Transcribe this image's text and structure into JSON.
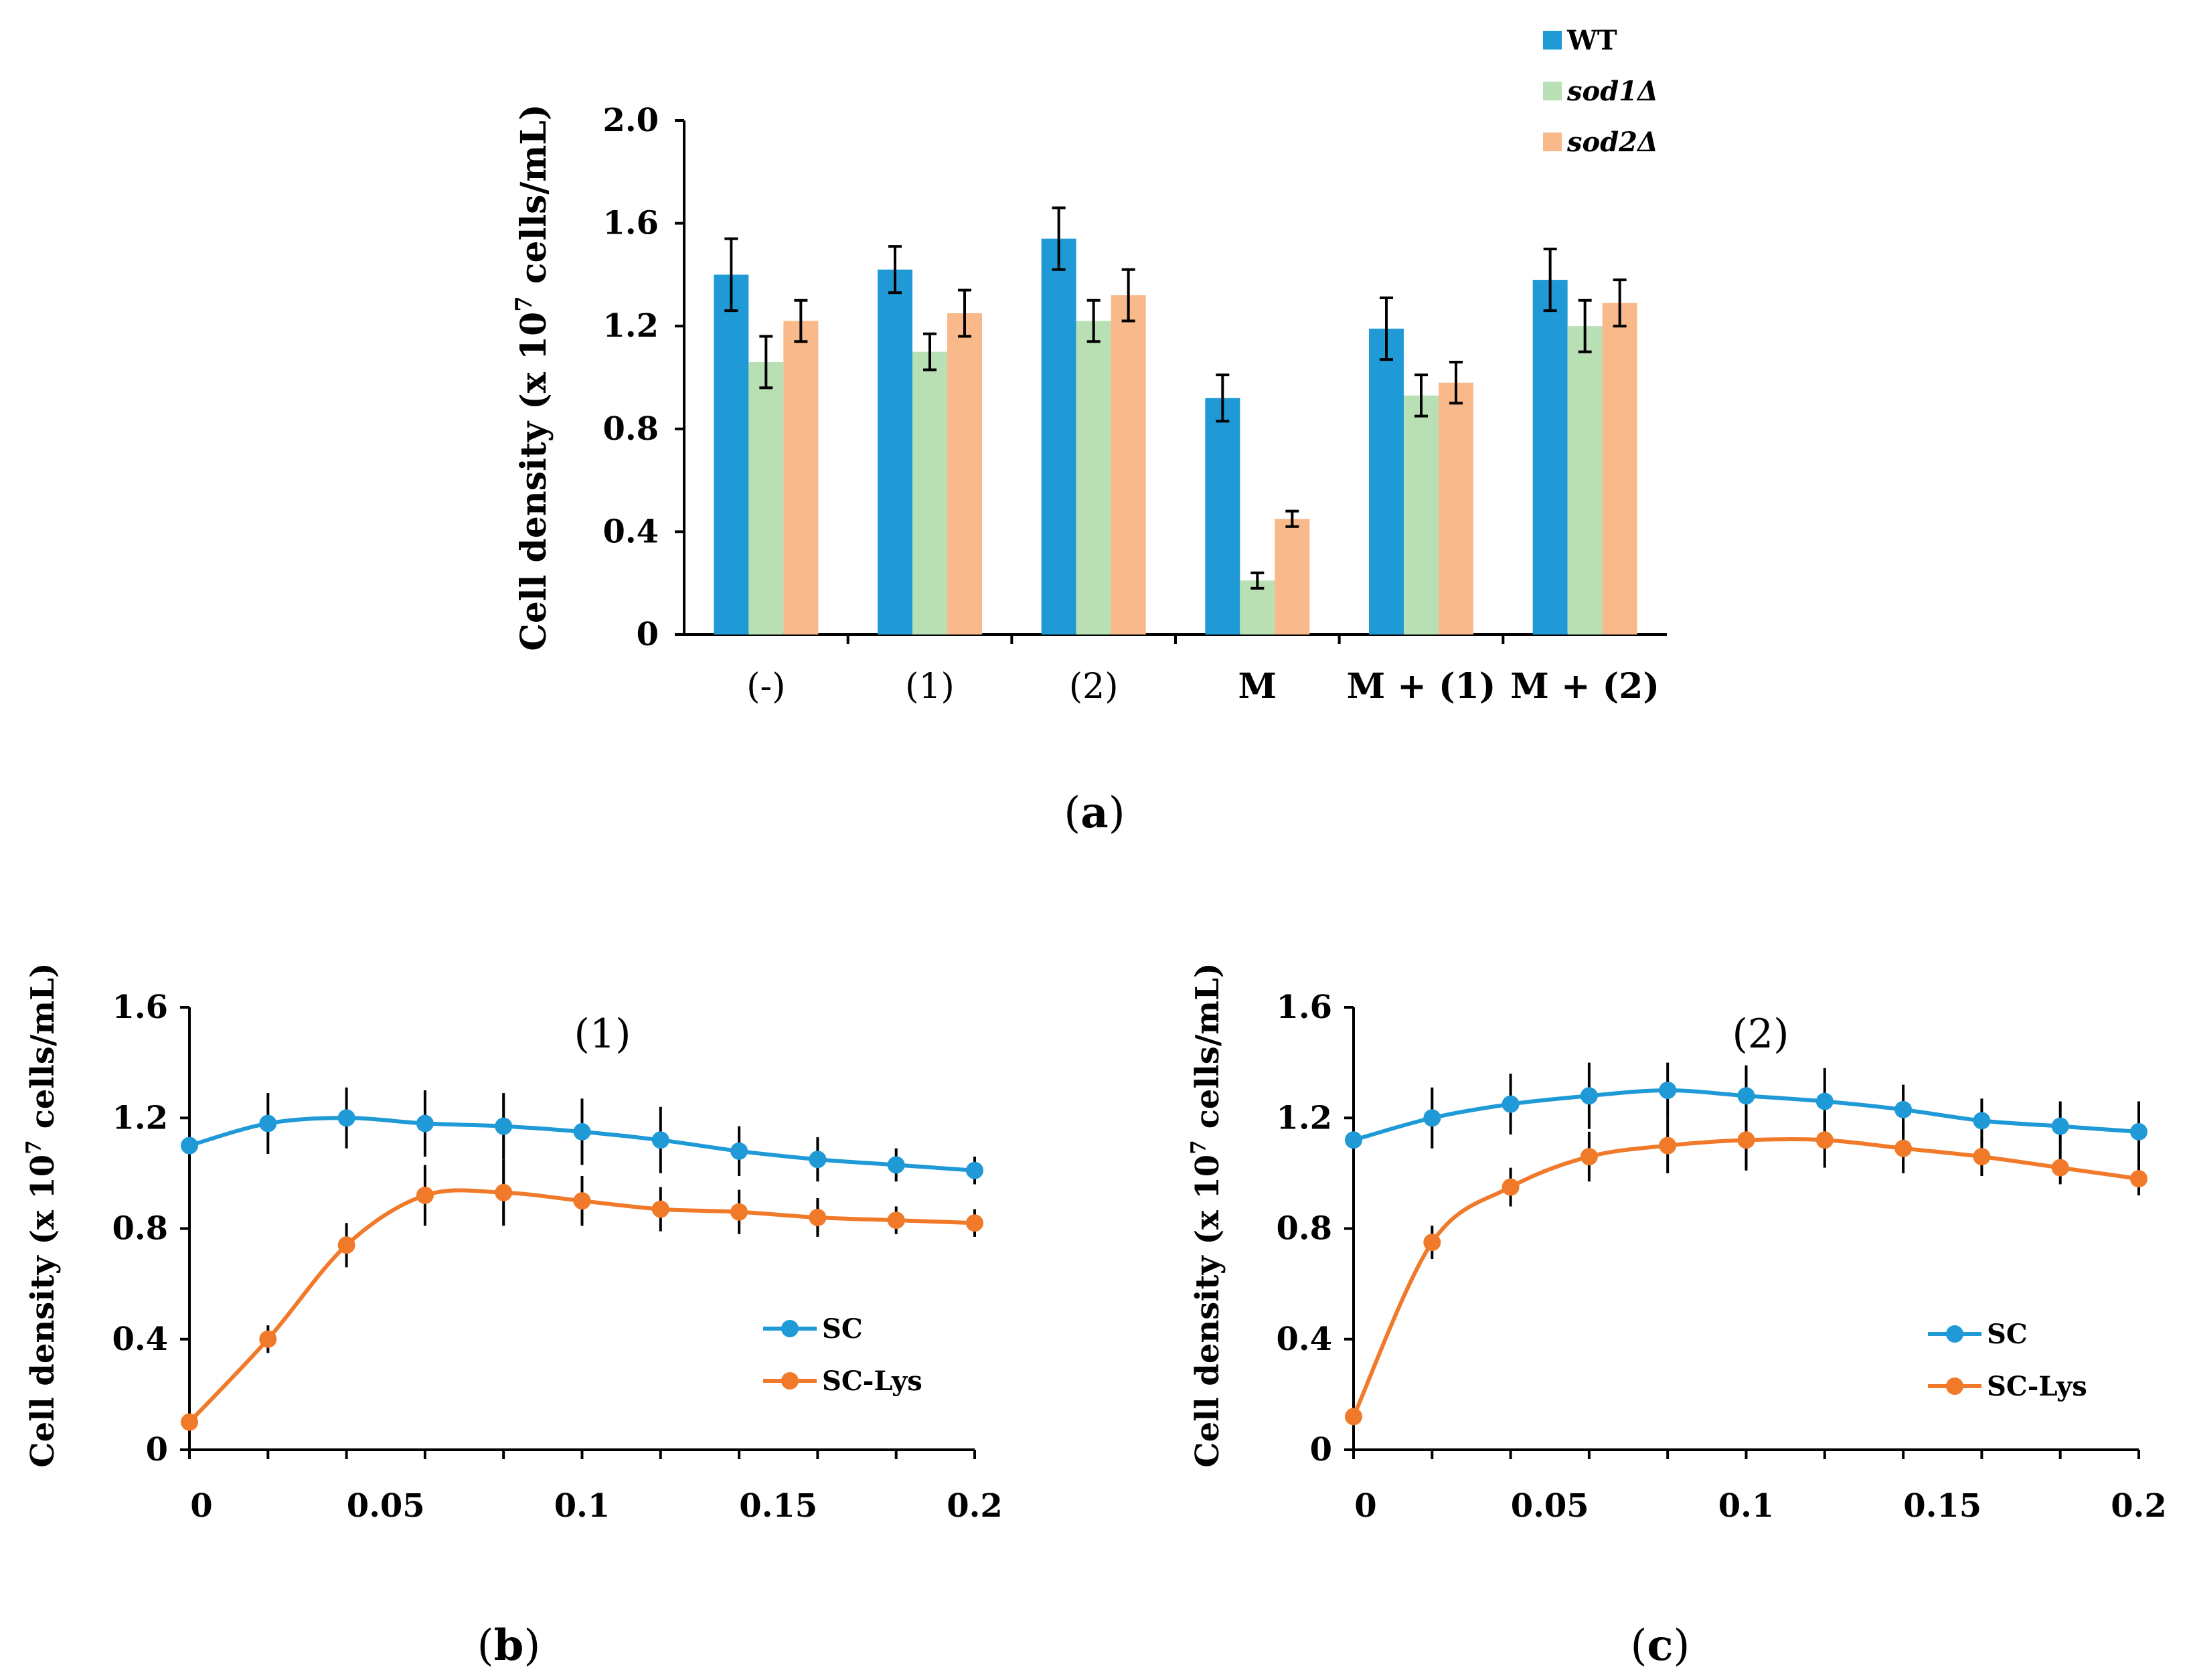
{
  "chart_data": [
    {
      "type": "bar",
      "panel_label": "(a)",
      "title": "",
      "xlabel": "",
      "ylabel": "Cell density (x 10⁷ cells/mL)",
      "ylim": [
        0,
        2.0
      ],
      "yticks": [
        "0",
        "0.4",
        "0.8",
        "1.2",
        "1.6",
        "2.0"
      ],
      "categories": [
        "(-)",
        "(1)",
        "(2)",
        "M",
        "M + (1)",
        "M + (2)"
      ],
      "legend_position": "top-right",
      "series": [
        {
          "name": "WT",
          "color": "#1f9ad6",
          "values": [
            1.4,
            1.42,
            1.54,
            0.92,
            1.19,
            1.38
          ],
          "errors": [
            0.14,
            0.09,
            0.12,
            0.09,
            0.12,
            0.12
          ]
        },
        {
          "name": "sod1Δ",
          "color": "#b9e0b5",
          "values": [
            1.06,
            1.1,
            1.22,
            0.21,
            0.93,
            1.2
          ],
          "errors": [
            0.1,
            0.07,
            0.08,
            0.03,
            0.08,
            0.1
          ]
        },
        {
          "name": "sod2Δ",
          "color": "#f9b98a",
          "values": [
            1.22,
            1.25,
            1.32,
            0.45,
            0.98,
            1.29
          ],
          "errors": [
            0.08,
            0.09,
            0.1,
            0.03,
            0.08,
            0.09
          ]
        }
      ]
    },
    {
      "type": "line",
      "panel_label": "(b)",
      "title": "(1)",
      "xlabel": "",
      "ylabel": "Cell density (x 10⁷ cells/mL)",
      "xlim": [
        0,
        0.2
      ],
      "ylim": [
        0,
        1.6
      ],
      "xticks": [
        "0",
        "0.05",
        "0.1",
        "0.15",
        "0.2"
      ],
      "yticks": [
        "0",
        "0.4",
        "0.8",
        "1.2",
        "1.6"
      ],
      "x": [
        0,
        0.02,
        0.04,
        0.06,
        0.08,
        0.1,
        0.12,
        0.14,
        0.16,
        0.18,
        0.2
      ],
      "legend_position": "bottom-right",
      "series": [
        {
          "name": "SC",
          "color": "#1f9ad6",
          "values": [
            1.1,
            1.18,
            1.2,
            1.18,
            1.17,
            1.15,
            1.12,
            1.08,
            1.05,
            1.03,
            1.01
          ],
          "errors": [
            0,
            0.11,
            0.11,
            0.12,
            0.12,
            0.12,
            0.12,
            0.09,
            0.08,
            0.06,
            0.05
          ]
        },
        {
          "name": "SC-Lys",
          "color": "#f07a2a",
          "values": [
            0.1,
            0.4,
            0.74,
            0.92,
            0.93,
            0.9,
            0.87,
            0.86,
            0.84,
            0.83,
            0.82
          ],
          "errors": [
            0,
            0.05,
            0.08,
            0.11,
            0.12,
            0.09,
            0.08,
            0.08,
            0.07,
            0.05,
            0.05
          ]
        }
      ]
    },
    {
      "type": "line",
      "panel_label": "(c)",
      "title": "(2)",
      "xlabel": "",
      "ylabel": "Cell density (x 10⁷ cells/mL)",
      "xlim": [
        0,
        0.2
      ],
      "ylim": [
        0,
        1.6
      ],
      "xticks": [
        "0",
        "0.05",
        "0.1",
        "0.15",
        "0.2"
      ],
      "yticks": [
        "0",
        "0.4",
        "0.8",
        "1.2",
        "1.6"
      ],
      "x": [
        0,
        0.02,
        0.04,
        0.06,
        0.08,
        0.1,
        0.12,
        0.14,
        0.16,
        0.18,
        0.2
      ],
      "legend_position": "bottom-right",
      "series": [
        {
          "name": "SC",
          "color": "#1f9ad6",
          "values": [
            1.12,
            1.2,
            1.25,
            1.28,
            1.3,
            1.28,
            1.26,
            1.23,
            1.19,
            1.17,
            1.15
          ],
          "errors": [
            0,
            0.11,
            0.11,
            0.12,
            0.1,
            0.11,
            0.12,
            0.09,
            0.08,
            0.09,
            0.11
          ]
        },
        {
          "name": "SC-Lys",
          "color": "#f07a2a",
          "values": [
            0.12,
            0.75,
            0.95,
            1.06,
            1.1,
            1.12,
            1.12,
            1.09,
            1.06,
            1.02,
            0.98
          ],
          "errors": [
            0,
            0.06,
            0.07,
            0.09,
            0.1,
            0.11,
            0.1,
            0.09,
            0.07,
            0.06,
            0.06
          ]
        }
      ]
    }
  ]
}
